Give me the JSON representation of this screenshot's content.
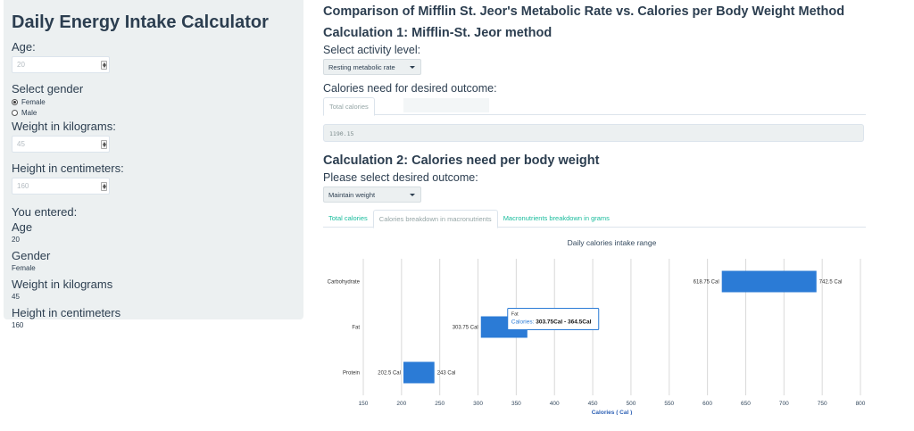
{
  "sidebar": {
    "title": "Daily Energy Intake Calculator",
    "age_label": "Age:",
    "age_value": "20",
    "gender_label": "Select gender",
    "gender_options": [
      "Female",
      "Male"
    ],
    "gender_selected": "Female",
    "weight_label": "Weight in kilograms:",
    "weight_value": "45",
    "height_label": "Height in centimeters:",
    "height_value": "160",
    "entered_title": "You entered:",
    "entered": [
      {
        "label": "Age",
        "value": "20"
      },
      {
        "label": "Gender",
        "value": "Female"
      },
      {
        "label": "Weight in kilograms",
        "value": "45"
      },
      {
        "label": "Height in centimeters",
        "value": "160"
      }
    ]
  },
  "main": {
    "title": "Comparison of Mifflin St. Jeor's Metabolic Rate vs. Calories per Body Weight Method",
    "calc1": {
      "heading": "Calculation 1: Mifflin-St. Jeor method",
      "activity_label": "Select activity level:",
      "activity_value": "Resting metabolic rate",
      "need_label": "Calories need for desired outcome:",
      "tab": "Total calories",
      "output": "1190.15"
    },
    "calc2": {
      "heading": "Calculation 2: Calories need per body weight",
      "outcome_label": "Please select desired outcome:",
      "outcome_value": "Maintain weight",
      "tabs": [
        "Total calories",
        "Calories breakdown in macronutrients",
        "Macronutrients breakdown in grams"
      ],
      "active_tab": 1
    },
    "tooltip": {
      "title": "Fat",
      "series": "Calories:",
      "value": "303.75Cal - 364.5Cal"
    }
  },
  "chart_data": {
    "type": "bar",
    "orientation": "horizontal",
    "title": "Daily calories intake range",
    "xlabel": "Calories ( Cal )",
    "ylabel": "",
    "categories": [
      "Carbohydrate",
      "Fat",
      "Protein"
    ],
    "ranges": [
      {
        "low": 618.75,
        "high": 742.5,
        "low_label": "618.75 Cal",
        "high_label": "742.5 Cal"
      },
      {
        "low": 303.75,
        "high": 364.5,
        "low_label": "303.75 Cal",
        "high_label": ""
      },
      {
        "low": 202.5,
        "high": 243,
        "low_label": "202.5 Cal",
        "high_label": "243 Cal"
      }
    ],
    "xlim": [
      150,
      800
    ],
    "xticks": [
      150,
      200,
      250,
      300,
      350,
      400,
      450,
      500,
      550,
      600,
      650,
      700,
      750,
      800
    ],
    "bar_color": "#2b7bd6",
    "grid": true
  },
  "colors": {
    "accent": "#18bc9c",
    "text": "#2c3e50",
    "sidebar_bg": "#ecf0f1",
    "bar": "#2b7bd6",
    "axis_title": "#34495e"
  }
}
